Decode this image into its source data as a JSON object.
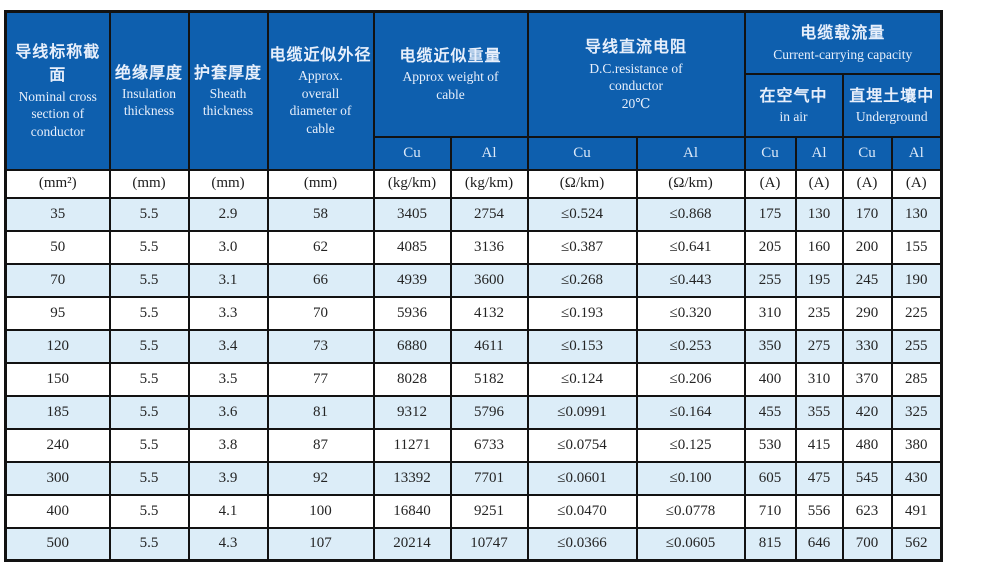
{
  "colors": {
    "header_blue": "#0e5fae",
    "header_text": "#e7effb",
    "alt_row_blue": "#dcedf8",
    "border_dark": "#121212",
    "data_text": "#242424"
  },
  "table": {
    "headers": {
      "nominal_cross_section": {
        "zh": "导线标称截面",
        "en": "Nominal cross section of conductor"
      },
      "insulation_thickness": {
        "zh": "绝缘厚度",
        "en": "Insulation thickness"
      },
      "sheath_thickness": {
        "zh": "护套厚度",
        "en": "Sheath thickness"
      },
      "approx_diameter": {
        "zh": "电缆近似外径",
        "en": "Approx. overall diameter of cable"
      },
      "approx_weight": {
        "zh": "电缆近似重量",
        "en": "Approx weight of cable"
      },
      "dc_resistance": {
        "zh": "导线直流电阻",
        "en": "D.C.resistance of conductor",
        "temp": "20℃"
      },
      "current_capacity": {
        "zh": "电缆载流量",
        "en": "Current-carrying capacity"
      },
      "in_air": {
        "zh": "在空气中",
        "en": "in air"
      },
      "underground": {
        "zh": "直埋土壤中",
        "en": "Underground"
      }
    },
    "sub_headers": [
      "Cu",
      "Al",
      "Cu",
      "Al",
      "Cu",
      "Al",
      "Cu",
      "Al"
    ],
    "units": [
      "(mm²)",
      "(mm)",
      "(mm)",
      "(mm)",
      "(kg/km)",
      "(kg/km)",
      "(Ω/km)",
      "(Ω/km)",
      "(A)",
      "(A)",
      "(A)",
      "(A)"
    ],
    "rows": [
      [
        "35",
        "5.5",
        "2.9",
        "58",
        "3405",
        "2754",
        "≤0.524",
        "≤0.868",
        "175",
        "130",
        "170",
        "130"
      ],
      [
        "50",
        "5.5",
        "3.0",
        "62",
        "4085",
        "3136",
        "≤0.387",
        "≤0.641",
        "205",
        "160",
        "200",
        "155"
      ],
      [
        "70",
        "5.5",
        "3.1",
        "66",
        "4939",
        "3600",
        "≤0.268",
        "≤0.443",
        "255",
        "195",
        "245",
        "190"
      ],
      [
        "95",
        "5.5",
        "3.3",
        "70",
        "5936",
        "4132",
        "≤0.193",
        "≤0.320",
        "310",
        "235",
        "290",
        "225"
      ],
      [
        "120",
        "5.5",
        "3.4",
        "73",
        "6880",
        "4611",
        "≤0.153",
        "≤0.253",
        "350",
        "275",
        "330",
        "255"
      ],
      [
        "150",
        "5.5",
        "3.5",
        "77",
        "8028",
        "5182",
        "≤0.124",
        "≤0.206",
        "400",
        "310",
        "370",
        "285"
      ],
      [
        "185",
        "5.5",
        "3.6",
        "81",
        "9312",
        "5796",
        "≤0.0991",
        "≤0.164",
        "455",
        "355",
        "420",
        "325"
      ],
      [
        "240",
        "5.5",
        "3.8",
        "87",
        "11271",
        "6733",
        "≤0.0754",
        "≤0.125",
        "530",
        "415",
        "480",
        "380"
      ],
      [
        "300",
        "5.5",
        "3.9",
        "92",
        "13392",
        "7701",
        "≤0.0601",
        "≤0.100",
        "605",
        "475",
        "545",
        "430"
      ],
      [
        "400",
        "5.5",
        "4.1",
        "100",
        "16840",
        "9251",
        "≤0.0470",
        "≤0.0778",
        "710",
        "556",
        "623",
        "491"
      ],
      [
        "500",
        "5.5",
        "4.3",
        "107",
        "20214",
        "10747",
        "≤0.0366",
        "≤0.0605",
        "815",
        "646",
        "700",
        "562"
      ]
    ]
  }
}
